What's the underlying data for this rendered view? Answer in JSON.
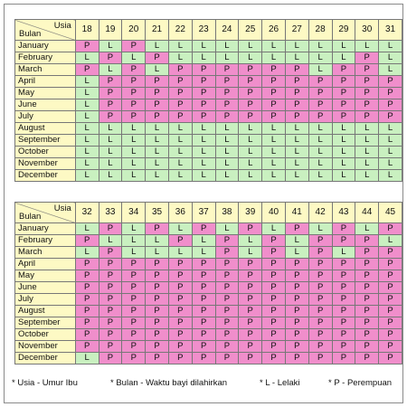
{
  "corner": {
    "age_label": "Usia",
    "month_label": "Bulan"
  },
  "months": [
    "January",
    "February",
    "March",
    "April",
    "May",
    "June",
    "July",
    "August",
    "September",
    "October",
    "November",
    "December"
  ],
  "tables": [
    {
      "ages": [
        "18",
        "19",
        "20",
        "21",
        "22",
        "23",
        "24",
        "25",
        "26",
        "27",
        "28",
        "29",
        "30",
        "31"
      ],
      "rows": [
        [
          "P",
          "L",
          "P",
          "L",
          "L",
          "L",
          "L",
          "L",
          "L",
          "L",
          "L",
          "L",
          "L",
          "L"
        ],
        [
          "L",
          "P",
          "L",
          "P",
          "L",
          "L",
          "L",
          "L",
          "L",
          "L",
          "L",
          "L",
          "P",
          "L"
        ],
        [
          "P",
          "L",
          "P",
          "L",
          "P",
          "P",
          "P",
          "P",
          "P",
          "P",
          "L",
          "P",
          "P",
          "L"
        ],
        [
          "L",
          "P",
          "P",
          "P",
          "P",
          "P",
          "P",
          "P",
          "P",
          "P",
          "P",
          "P",
          "P",
          "P"
        ],
        [
          "L",
          "P",
          "P",
          "P",
          "P",
          "P",
          "P",
          "P",
          "P",
          "P",
          "P",
          "P",
          "P",
          "P"
        ],
        [
          "L",
          "P",
          "P",
          "P",
          "P",
          "P",
          "P",
          "P",
          "P",
          "P",
          "P",
          "P",
          "P",
          "P"
        ],
        [
          "L",
          "P",
          "P",
          "P",
          "P",
          "P",
          "P",
          "P",
          "P",
          "P",
          "P",
          "P",
          "P",
          "P"
        ],
        [
          "L",
          "L",
          "L",
          "L",
          "L",
          "L",
          "L",
          "L",
          "L",
          "L",
          "L",
          "L",
          "L",
          "L"
        ],
        [
          "L",
          "L",
          "L",
          "L",
          "L",
          "L",
          "L",
          "L",
          "L",
          "L",
          "L",
          "L",
          "L",
          "L"
        ],
        [
          "L",
          "L",
          "L",
          "L",
          "L",
          "L",
          "L",
          "L",
          "L",
          "L",
          "L",
          "L",
          "L",
          "L"
        ],
        [
          "L",
          "L",
          "L",
          "L",
          "L",
          "L",
          "L",
          "L",
          "L",
          "L",
          "L",
          "L",
          "L",
          "L"
        ],
        [
          "L",
          "L",
          "L",
          "L",
          "L",
          "L",
          "L",
          "L",
          "L",
          "L",
          "L",
          "L",
          "L",
          "L"
        ]
      ]
    },
    {
      "ages": [
        "32",
        "33",
        "34",
        "35",
        "36",
        "37",
        "38",
        "39",
        "40",
        "41",
        "42",
        "43",
        "44",
        "45"
      ],
      "rows": [
        [
          "L",
          "P",
          "L",
          "P",
          "L",
          "P",
          "L",
          "P",
          "L",
          "P",
          "L",
          "P",
          "L",
          "P"
        ],
        [
          "P",
          "L",
          "L",
          "L",
          "P",
          "L",
          "P",
          "L",
          "P",
          "L",
          "P",
          "P",
          "P",
          "L"
        ],
        [
          "L",
          "P",
          "L",
          "L",
          "L",
          "L",
          "P",
          "L",
          "P",
          "L",
          "P",
          "L",
          "P",
          "P"
        ],
        [
          "P",
          "P",
          "P",
          "P",
          "P",
          "P",
          "P",
          "P",
          "P",
          "P",
          "P",
          "P",
          "P",
          "P"
        ],
        [
          "P",
          "P",
          "P",
          "P",
          "P",
          "P",
          "P",
          "P",
          "P",
          "P",
          "P",
          "P",
          "P",
          "P"
        ],
        [
          "P",
          "P",
          "P",
          "P",
          "P",
          "P",
          "P",
          "P",
          "P",
          "P",
          "P",
          "P",
          "P",
          "P"
        ],
        [
          "P",
          "P",
          "P",
          "P",
          "P",
          "P",
          "P",
          "P",
          "P",
          "P",
          "P",
          "P",
          "P",
          "P"
        ],
        [
          "P",
          "P",
          "P",
          "P",
          "P",
          "P",
          "P",
          "P",
          "P",
          "P",
          "P",
          "P",
          "P",
          "P"
        ],
        [
          "P",
          "P",
          "P",
          "P",
          "P",
          "P",
          "P",
          "P",
          "P",
          "P",
          "P",
          "P",
          "P",
          "P"
        ],
        [
          "P",
          "P",
          "P",
          "P",
          "P",
          "P",
          "P",
          "P",
          "P",
          "P",
          "P",
          "P",
          "P",
          "P"
        ],
        [
          "P",
          "P",
          "P",
          "P",
          "P",
          "P",
          "P",
          "P",
          "P",
          "P",
          "P",
          "P",
          "P",
          "P"
        ],
        [
          "L",
          "P",
          "P",
          "P",
          "P",
          "P",
          "P",
          "P",
          "P",
          "P",
          "P",
          "P",
          "P",
          "P"
        ]
      ]
    }
  ],
  "colors": {
    "P": "#f08ecb",
    "L": "#c9f0c0",
    "header": "#fdf9c4"
  },
  "legend": [
    "* Usia - Umur Ibu",
    "* Bulan - Waktu bayi dilahirkan",
    "* L - Lelaki",
    "* P - Perempuan"
  ]
}
